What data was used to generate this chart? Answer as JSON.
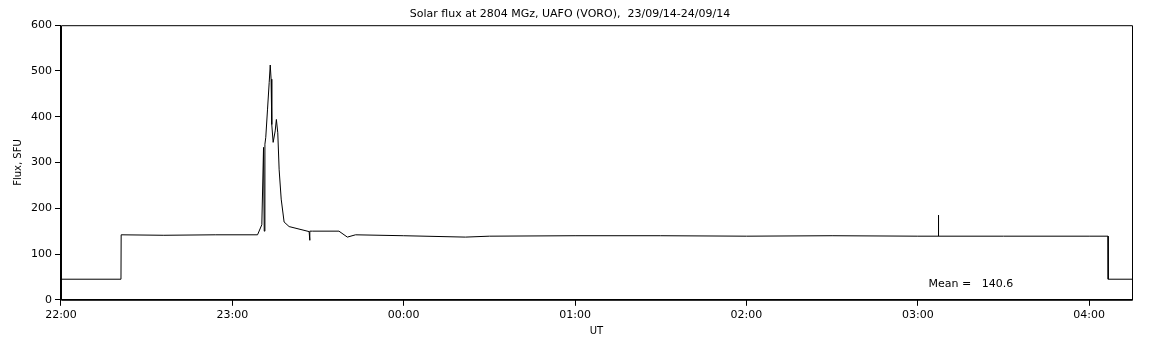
{
  "chart_data": {
    "type": "line",
    "title": "Solar flux at 2804 MGz, UAFO (VORO),  23/09/14-24/09/14",
    "xlabel": "UT",
    "ylabel": "Flux, SFU",
    "annotations": [
      "Mean =   140.6"
    ],
    "series": [
      {
        "color": "#000000",
        "x": [
          "--09-23T22:00:00",
          "--09-23T22:21:00",
          "--09-23T22:21:04",
          "--09-23T22:36:00",
          "--09-23T22:54:00",
          "--09-23T23:08:49",
          "--09-23T23:10:19",
          "--09-23T23:10:55",
          "--09-23T23:11:10",
          "--09-23T23:11:24",
          "--09-23T23:11:42",
          "--09-23T23:12:18",
          "--09-23T23:12:54",
          "--09-23T23:13:16",
          "--09-23T23:13:34",
          "--09-23T23:13:48",
          "--09-23T23:14:17",
          "--09-23T23:15:00",
          "--09-23T23:15:25",
          "--09-23T23:15:54",
          "--09-23T23:16:23",
          "--09-23T23:17:06",
          "--09-23T23:18:07",
          "--09-23T23:19:52",
          "--09-23T23:26:53",
          "--09-23T23:27:04",
          "--09-23T23:27:11",
          "--09-23T23:28:01",
          "--09-23T23:37:19",
          "--09-23T23:40:16",
          "--09-23T23:43:08",
          "--09-24T00:00:00",
          "--09-24T00:21:36",
          "--09-24T00:30:00",
          "--09-24T01:00:00",
          "--09-24T01:30:00",
          "--09-24T02:00:00",
          "--09-24T02:30:00",
          "--09-24T03:00:00",
          "--09-24T03:07:05",
          "--09-24T03:07:12",
          "--09-24T03:07:19",
          "--09-24T03:30:00",
          "--09-24T04:00:00",
          "--09-24T04:06:36",
          "--09-24T04:06:40",
          "--09-24T04:15:00"
        ],
        "values": [
          45,
          45,
          142,
          141,
          142,
          142,
          164,
          333,
          150,
          340,
          355,
          415,
          475,
          513,
          482,
          383,
          344,
          369,
          394,
          365,
          284,
          220,
          170,
          160,
          149,
          130,
          150,
          150,
          150,
          137,
          142,
          140,
          137,
          139,
          140,
          140,
          139,
          140,
          139,
          139,
          185,
          139,
          139,
          139,
          139,
          45,
          45
        ]
      }
    ],
    "xlim": [
      "--09-23T22:00",
      "--09-24T04:15"
    ],
    "xticks": [
      {
        "value": "--09-23T22:00",
        "label": "22:00"
      },
      {
        "value": "--09-23T23:00",
        "label": "23:00"
      },
      {
        "value": "--09-24T00:00",
        "label": "00:00"
      },
      {
        "value": "--09-24T01:00",
        "label": "01:00"
      },
      {
        "value": "--09-24T02:00",
        "label": "02:00"
      },
      {
        "value": "--09-24T03:00",
        "label": "03:00"
      },
      {
        "value": "--09-24T04:00",
        "label": "04:00"
      }
    ],
    "ylim": [
      0,
      600
    ],
    "yticks": [
      0,
      100,
      200,
      300,
      400,
      500,
      600
    ],
    "grid": false,
    "legend": false,
    "marker": "none",
    "line_style": "solid"
  }
}
